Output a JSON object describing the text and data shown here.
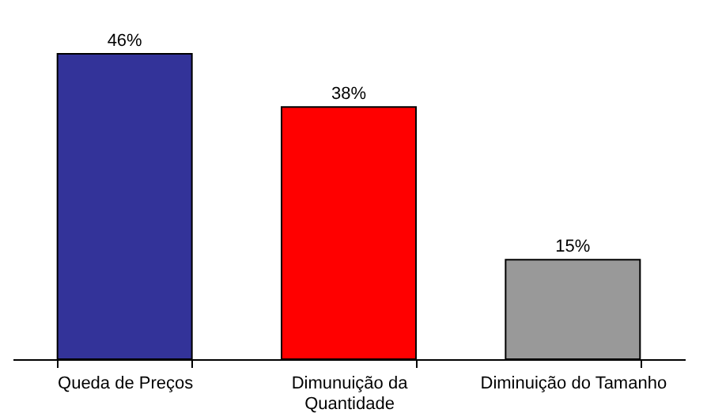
{
  "chart_data": {
    "type": "bar",
    "categories": [
      "Queda de Preços",
      "Dimunuição da Quantidade",
      "Diminuição do Tamanho"
    ],
    "values": [
      46,
      38,
      15
    ],
    "colors": [
      "#333399",
      "#ff0000",
      "#999999"
    ],
    "value_labels": [
      "46%",
      "38%",
      "15%"
    ]
  }
}
